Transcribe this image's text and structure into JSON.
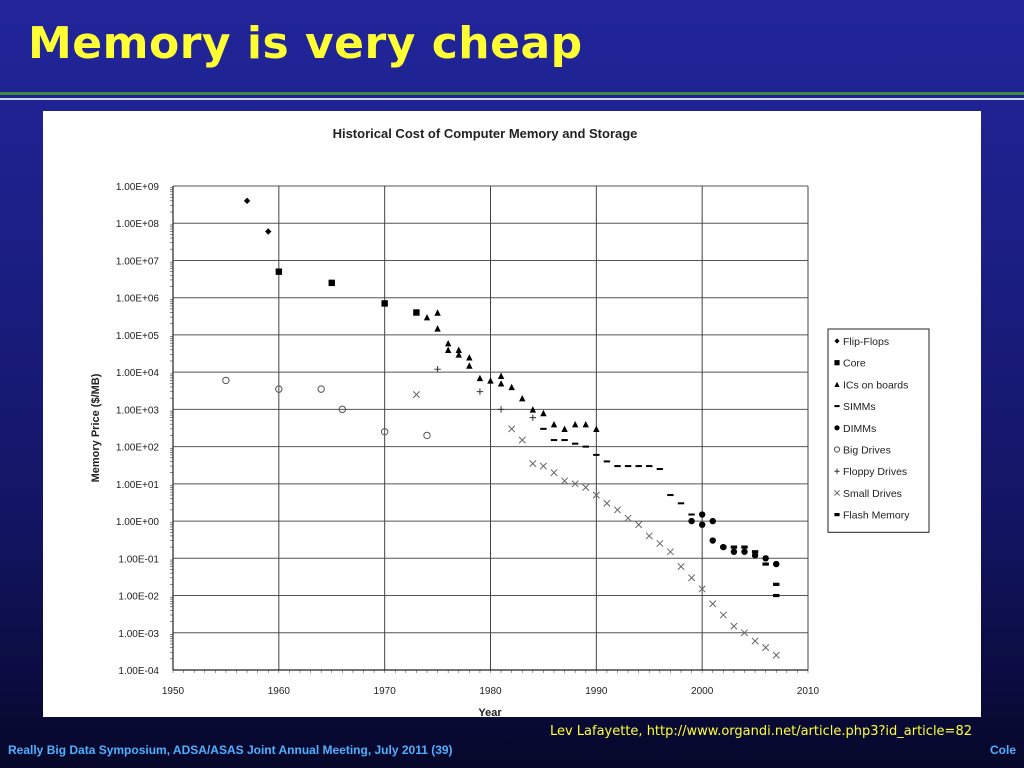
{
  "slide": {
    "title": "Memory is very cheap",
    "citation": "Lev Lafayette, http://www.organdi.net/article.php3?id_article=82",
    "footer_left": "Really Big Data Symposium, ADSA/ASAS Joint Annual Meeting, July 2011 (39)",
    "footer_right": "Cole"
  },
  "chart_data": {
    "type": "scatter",
    "title": "Historical Cost of Computer Memory and Storage",
    "xlabel": "Year",
    "ylabel": "Memory Price ($/MB)",
    "xlim": [
      1950,
      2010
    ],
    "ylim_log10": [
      -4,
      9
    ],
    "log_y": true,
    "x_ticks": [
      "1950",
      "1960",
      "1970",
      "1980",
      "1990",
      "2000",
      "2010"
    ],
    "y_ticks": [
      "1.00E+09",
      "1.00E+08",
      "1.00E+07",
      "1.00E+06",
      "1.00E+05",
      "1.00E+04",
      "1.00E+03",
      "1.00E+02",
      "1.00E+01",
      "1.00E+00",
      "1.00E-01",
      "1.00E-02",
      "1.00E-03",
      "1.00E-04"
    ],
    "legend_position": "right",
    "grid": true,
    "series": [
      {
        "name": "Flip-Flops",
        "marker": "diamond",
        "x": [
          1957,
          1959
        ],
        "y": [
          400000000.0,
          60000000.0
        ]
      },
      {
        "name": "Core",
        "marker": "square",
        "x": [
          1960,
          1965,
          1970,
          1973
        ],
        "y": [
          5000000.0,
          2500000.0,
          700000.0,
          400000.0
        ]
      },
      {
        "name": "ICs on boards",
        "marker": "triangle",
        "x": [
          1974,
          1975,
          1975,
          1976,
          1976,
          1977,
          1977,
          1978,
          1978,
          1979,
          1980,
          1981,
          1981,
          1982,
          1983,
          1984,
          1985,
          1986,
          1987,
          1988,
          1989,
          1990
        ],
        "y": [
          300000.0,
          400000.0,
          150000.0,
          60000.0,
          40000.0,
          30000.0,
          40000.0,
          25000.0,
          15000.0,
          7000.0,
          6000.0,
          8000.0,
          5000.0,
          4000.0,
          2000.0,
          1000.0,
          800.0,
          400.0,
          300.0,
          400.0,
          400.0,
          300.0
        ]
      },
      {
        "name": "SIMMs",
        "marker": "dash",
        "x": [
          1985,
          1986,
          1987,
          1988,
          1989,
          1990,
          1991,
          1992,
          1993,
          1994,
          1995,
          1996,
          1997,
          1998,
          1999
        ],
        "y": [
          300.0,
          150.0,
          150.0,
          120.0,
          100.0,
          60.0,
          40.0,
          30.0,
          30.0,
          30.0,
          30.0,
          25.0,
          5.0,
          3.0,
          1.5
        ]
      },
      {
        "name": "DIMMs",
        "marker": "circle",
        "x": [
          1999,
          2000,
          2000,
          2001,
          2001,
          2002,
          2003,
          2004,
          2005,
          2006,
          2007
        ],
        "y": [
          1.0,
          1.5,
          0.8,
          1.0,
          0.3,
          0.2,
          0.15,
          0.15,
          0.12,
          0.1,
          0.07
        ]
      },
      {
        "name": "Big Drives",
        "marker": "open-circle",
        "x": [
          1955,
          1960,
          1964,
          1966,
          1970,
          1974
        ],
        "y": [
          6000.0,
          3500.0,
          3500.0,
          1000.0,
          250.0,
          200.0
        ]
      },
      {
        "name": "Floppy Drives",
        "marker": "plus",
        "x": [
          1975,
          1979,
          1981,
          1984
        ],
        "y": [
          12000.0,
          3000.0,
          1000.0,
          600.0
        ]
      },
      {
        "name": "Small Drives",
        "marker": "x",
        "x": [
          1973,
          1982,
          1983,
          1984,
          1985,
          1986,
          1987,
          1988,
          1989,
          1990,
          1991,
          1992,
          1993,
          1994,
          1995,
          1996,
          1997,
          1998,
          1999,
          2000,
          2001,
          2002,
          2003,
          2004,
          2005,
          2006,
          2007
        ],
        "y": [
          2500.0,
          300.0,
          150.0,
          35.0,
          30.0,
          20.0,
          12.0,
          10.0,
          8.0,
          5.0,
          3.0,
          2.0,
          1.2,
          0.8,
          0.4,
          0.25,
          0.15,
          0.06,
          0.03,
          0.015,
          0.006,
          0.003,
          0.0015,
          0.001,
          0.0006,
          0.0004,
          0.00025
        ]
      },
      {
        "name": "Flash Memory",
        "marker": "bar",
        "x": [
          2002,
          2003,
          2004,
          2005,
          2006,
          2007,
          2007
        ],
        "y": [
          0.2,
          0.2,
          0.2,
          0.15,
          0.07,
          0.02,
          0.01
        ]
      }
    ]
  }
}
